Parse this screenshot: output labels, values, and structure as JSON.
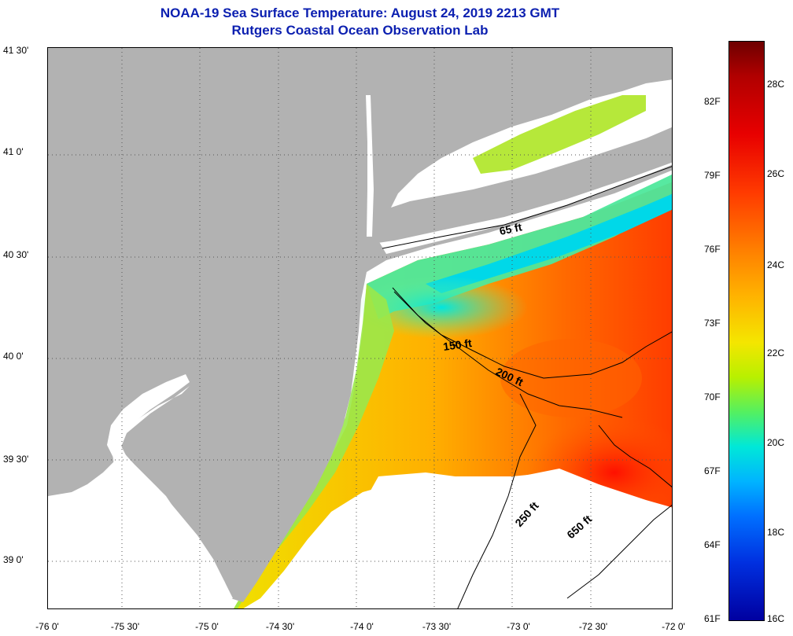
{
  "header": {
    "title": "NOAA-19 Sea Surface Temperature:  August 24, 2019 2213 GMT",
    "subtitle": "Rutgers Coastal Ocean Observation Lab"
  },
  "axes": {
    "latitude_labels": [
      "41 30'",
      "41 0'",
      "40 30'",
      "40 0'",
      "39 30'",
      "39 0'"
    ],
    "longitude_labels": [
      "-76 0'",
      "-75 30'",
      "-75 0'",
      "-74 30'",
      "-74 0'",
      "-73 30'",
      "-73 0'",
      "-72 30'",
      "-72 0'"
    ]
  },
  "colorbar": {
    "fahrenheit_labels": [
      "82F",
      "79F",
      "76F",
      "73F",
      "70F",
      "67F",
      "64F",
      "61F"
    ],
    "celsius_labels": [
      "28C",
      "26C",
      "24C",
      "22C",
      "20C",
      "18C",
      "16C"
    ]
  },
  "contours": [
    "65 ft",
    "150 ft",
    "200 ft",
    "250 ft",
    "650 ft"
  ],
  "colors": {
    "land": "#b2b2b2",
    "no_data": "#ffffff",
    "title": "#0b1fb0"
  }
}
